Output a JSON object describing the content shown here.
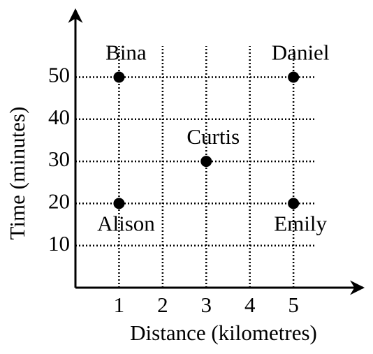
{
  "chart_data": {
    "type": "scatter",
    "x_label": "Distance (kilometres)",
    "y_label": "Time (minutes)",
    "x": [
      1,
      1,
      3,
      5,
      5
    ],
    "values": [
      20,
      50,
      30,
      50,
      20
    ],
    "point_labels": [
      "Alison",
      "Bina",
      "Curtis",
      "Daniel",
      "Emily"
    ],
    "color": "#000000",
    "xlim": [
      0,
      6.6
    ],
    "ylim": [
      0,
      66
    ],
    "xticks": [
      1,
      2,
      3,
      4,
      5
    ],
    "yticks": [
      10,
      20,
      30,
      40,
      50
    ],
    "grid": true
  }
}
